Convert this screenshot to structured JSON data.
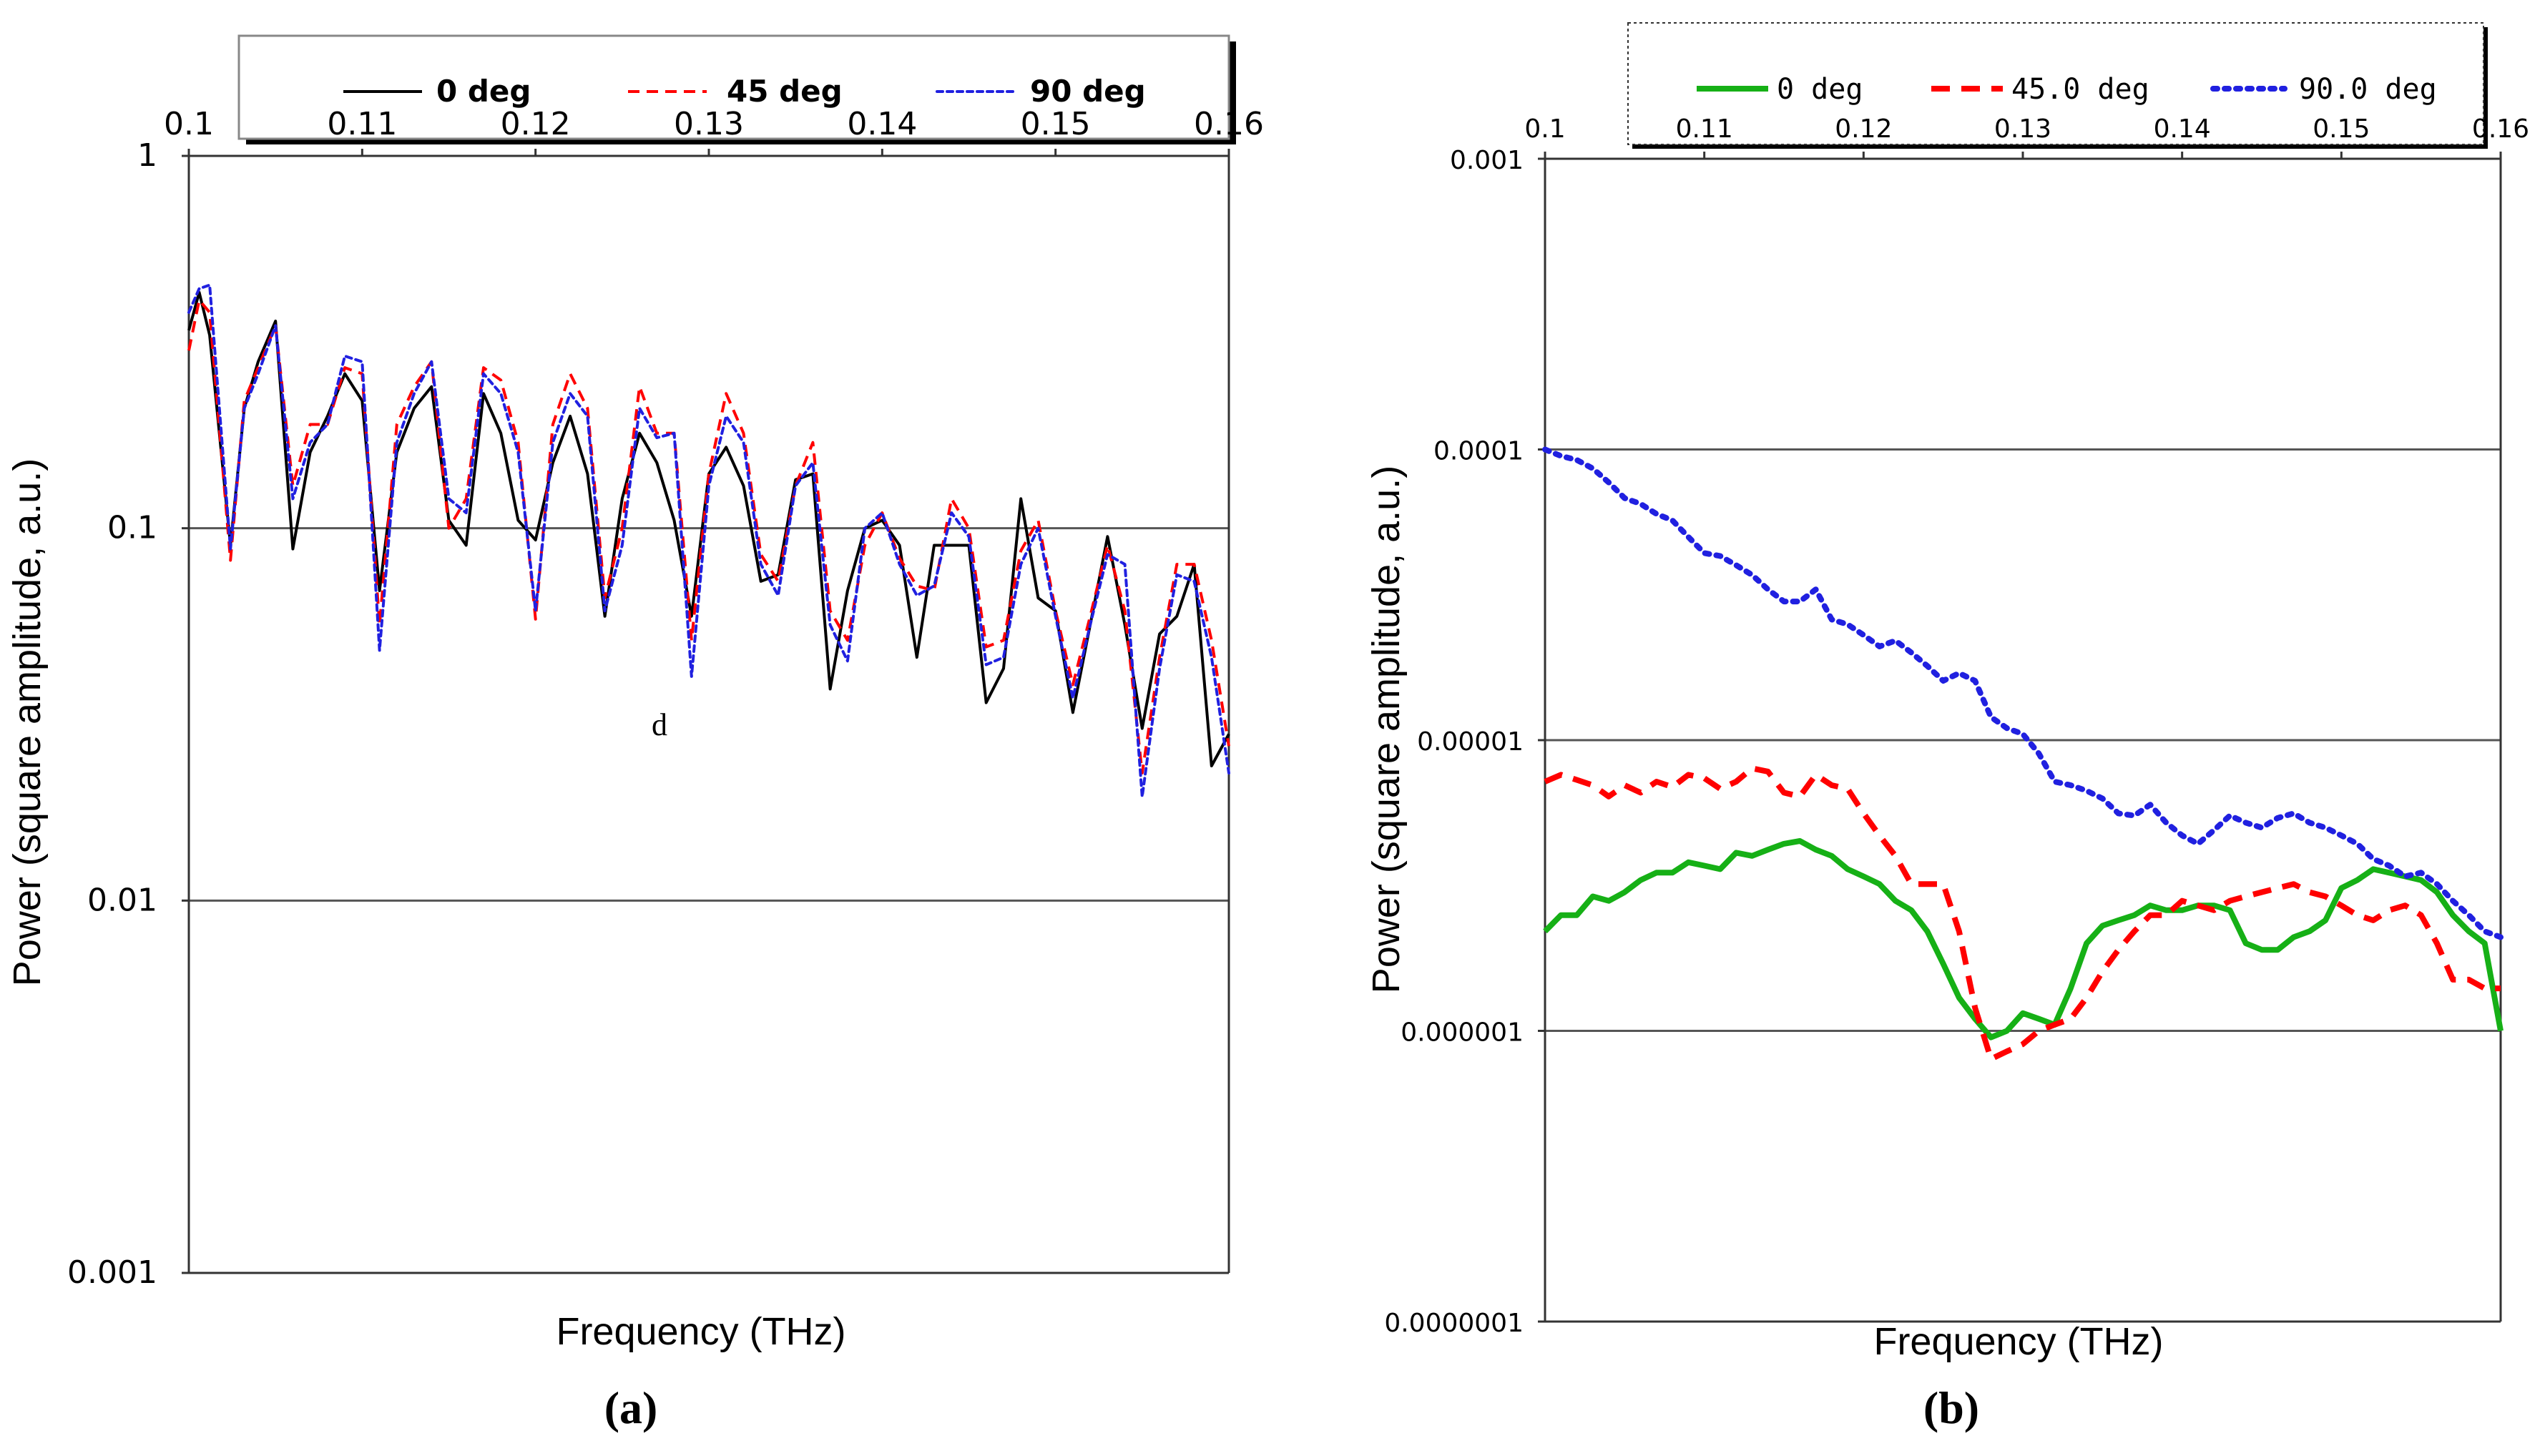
{
  "panels": [
    {
      "label": "(a)",
      "annotation": "d",
      "y_tick_labels": [
        "1",
        "0.1",
        "0.01",
        "0.001"
      ],
      "x_tick_labels": [
        "0.1",
        "0.11",
        "0.12",
        "0.13",
        "0.14",
        "0.15",
        "0.16"
      ]
    },
    {
      "label": "(b)",
      "annotation": "",
      "y_tick_labels": [
        "0.001",
        "0.0001",
        "0.00001",
        "0.000001",
        "0.0000001"
      ],
      "x_tick_labels": [
        "0.1",
        "0.11",
        "0.12",
        "0.13",
        "0.14",
        "0.15",
        "0.16"
      ]
    }
  ],
  "colors": {
    "black": "#000000",
    "red": "#ff0000",
    "blue": "#2020e0",
    "green": "#16b016",
    "grid": "#555555"
  },
  "chart_data": [
    {
      "type": "line",
      "title": "",
      "xlabel": "Frequency (THz)",
      "ylabel": "Power (square amplitude, a.u.)",
      "xlim": [
        0.1,
        0.16
      ],
      "ylim": [
        0.001,
        1
      ],
      "yscale": "log",
      "grid": "horizontal",
      "legend_position": "top",
      "x": [
        0.1,
        0.1006,
        0.1012,
        0.1024,
        0.1032,
        0.104,
        0.105,
        0.106,
        0.107,
        0.108,
        0.109,
        0.11,
        0.111,
        0.112,
        0.113,
        0.114,
        0.115,
        0.116,
        0.117,
        0.118,
        0.119,
        0.12,
        0.121,
        0.122,
        0.123,
        0.124,
        0.125,
        0.126,
        0.127,
        0.128,
        0.129,
        0.13,
        0.131,
        0.132,
        0.133,
        0.134,
        0.135,
        0.136,
        0.137,
        0.138,
        0.139,
        0.14,
        0.141,
        0.142,
        0.143,
        0.144,
        0.145,
        0.146,
        0.147,
        0.148,
        0.149,
        0.15,
        0.151,
        0.152,
        0.153,
        0.154,
        0.155,
        0.156,
        0.157,
        0.158,
        0.159,
        0.16
      ],
      "series": [
        {
          "name": "0 deg",
          "color": "#000000",
          "dash": "solid",
          "values": [
            0.34,
            0.43,
            0.33,
            0.09,
            0.21,
            0.28,
            0.36,
            0.088,
            0.16,
            0.2,
            0.26,
            0.22,
            0.068,
            0.16,
            0.21,
            0.24,
            0.105,
            0.09,
            0.23,
            0.18,
            0.105,
            0.093,
            0.15,
            0.2,
            0.14,
            0.058,
            0.12,
            0.18,
            0.15,
            0.105,
            0.058,
            0.14,
            0.165,
            0.13,
            0.072,
            0.075,
            0.135,
            0.14,
            0.037,
            0.068,
            0.1,
            0.105,
            0.09,
            0.045,
            0.09,
            0.09,
            0.09,
            0.034,
            0.042,
            0.12,
            0.065,
            0.06,
            0.032,
            0.055,
            0.095,
            0.055,
            0.029,
            0.052,
            0.058,
            0.08,
            0.023,
            0.028
          ]
        },
        {
          "name": "45 deg",
          "color": "#ff0000",
          "dash": "dashed",
          "values": [
            0.3,
            0.41,
            0.38,
            0.082,
            0.22,
            0.27,
            0.35,
            0.13,
            0.19,
            0.19,
            0.27,
            0.26,
            0.055,
            0.19,
            0.24,
            0.28,
            0.1,
            0.12,
            0.27,
            0.25,
            0.17,
            0.057,
            0.19,
            0.26,
            0.21,
            0.065,
            0.1,
            0.24,
            0.18,
            0.18,
            0.05,
            0.14,
            0.23,
            0.18,
            0.085,
            0.072,
            0.13,
            0.17,
            0.06,
            0.05,
            0.09,
            0.11,
            0.083,
            0.07,
            0.068,
            0.12,
            0.1,
            0.048,
            0.05,
            0.087,
            0.105,
            0.06,
            0.038,
            0.058,
            0.09,
            0.06,
            0.022,
            0.045,
            0.08,
            0.08,
            0.05,
            0.026
          ]
        },
        {
          "name": "90 deg",
          "color": "#2020e0",
          "dash": "dotted",
          "values": [
            0.38,
            0.44,
            0.45,
            0.088,
            0.21,
            0.26,
            0.35,
            0.12,
            0.17,
            0.19,
            0.29,
            0.28,
            0.047,
            0.17,
            0.23,
            0.28,
            0.12,
            0.11,
            0.26,
            0.23,
            0.16,
            0.06,
            0.17,
            0.23,
            0.2,
            0.06,
            0.09,
            0.21,
            0.175,
            0.18,
            0.04,
            0.13,
            0.2,
            0.17,
            0.08,
            0.066,
            0.13,
            0.15,
            0.055,
            0.044,
            0.1,
            0.11,
            0.08,
            0.066,
            0.07,
            0.11,
            0.095,
            0.043,
            0.045,
            0.08,
            0.1,
            0.058,
            0.035,
            0.055,
            0.085,
            0.08,
            0.019,
            0.042,
            0.075,
            0.072,
            0.045,
            0.022
          ]
        }
      ]
    },
    {
      "type": "line",
      "title": "",
      "xlabel": "Frequency (THz)",
      "ylabel": "Power (square amplitude, a.u.)",
      "xlim": [
        0.1,
        0.16
      ],
      "ylim": [
        1e-07,
        0.001
      ],
      "yscale": "log",
      "grid": "horizontal",
      "legend_position": "top",
      "x": [
        0.1,
        0.101,
        0.102,
        0.103,
        0.104,
        0.105,
        0.106,
        0.107,
        0.108,
        0.109,
        0.11,
        0.111,
        0.112,
        0.113,
        0.114,
        0.115,
        0.116,
        0.117,
        0.118,
        0.119,
        0.12,
        0.121,
        0.122,
        0.123,
        0.124,
        0.125,
        0.126,
        0.127,
        0.128,
        0.129,
        0.13,
        0.131,
        0.132,
        0.133,
        0.134,
        0.135,
        0.136,
        0.137,
        0.138,
        0.139,
        0.14,
        0.141,
        0.142,
        0.143,
        0.144,
        0.145,
        0.146,
        0.147,
        0.148,
        0.149,
        0.15,
        0.151,
        0.152,
        0.153,
        0.154,
        0.155,
        0.156,
        0.157,
        0.158,
        0.159,
        0.16
      ],
      "series": [
        {
          "name": "0 deg",
          "color": "#16b016",
          "dash": "solid",
          "values": [
            2.2e-06,
            2.5e-06,
            2.5e-06,
            2.9e-06,
            2.8e-06,
            3e-06,
            3.3e-06,
            3.5e-06,
            3.5e-06,
            3.8e-06,
            3.7e-06,
            3.6e-06,
            4.1e-06,
            4e-06,
            4.2e-06,
            4.4e-06,
            4.5e-06,
            4.2e-06,
            4e-06,
            3.6e-06,
            3.4e-06,
            3.2e-06,
            2.8e-06,
            2.6e-06,
            2.2e-06,
            1.7e-06,
            1.3e-06,
            1.1e-06,
            9.5e-07,
            1e-06,
            1.15e-06,
            1.1e-06,
            1.05e-06,
            1.4e-06,
            2e-06,
            2.3e-06,
            2.4e-06,
            2.5e-06,
            2.7e-06,
            2.6e-06,
            2.6e-06,
            2.7e-06,
            2.7e-06,
            2.6e-06,
            2e-06,
            1.9e-06,
            1.9e-06,
            2.1e-06,
            2.2e-06,
            2.4e-06,
            3.1e-06,
            3.3e-06,
            3.6e-06,
            3.5e-06,
            3.4e-06,
            3.3e-06,
            3e-06,
            2.5e-06,
            2.2e-06,
            2e-06,
            1e-06
          ]
        },
        {
          "name": "45.0 deg",
          "color": "#ff0000",
          "dash": "dashed",
          "values": [
            7.2e-06,
            7.6e-06,
            7.3e-06,
            7e-06,
            6.4e-06,
            7e-06,
            6.6e-06,
            7.2e-06,
            6.9e-06,
            7.6e-06,
            7.4e-06,
            6.8e-06,
            7.2e-06,
            8e-06,
            7.8e-06,
            6.6e-06,
            6.4e-06,
            7.6e-06,
            7e-06,
            6.8e-06,
            5.6e-06,
            4.7e-06,
            4e-06,
            3.2e-06,
            3.2e-06,
            3.2e-06,
            2.2e-06,
            1.2e-06,
            8e-07,
            8.5e-07,
            9e-07,
            1e-06,
            1.05e-06,
            1.1e-06,
            1.3e-06,
            1.6e-06,
            1.9e-06,
            2.2e-06,
            2.5e-06,
            2.5e-06,
            2.8e-06,
            2.7e-06,
            2.6e-06,
            2.8e-06,
            2.9e-06,
            3e-06,
            3.1e-06,
            3.2e-06,
            3e-06,
            2.9e-06,
            2.7e-06,
            2.5e-06,
            2.4e-06,
            2.6e-06,
            2.7e-06,
            2.5e-06,
            2e-06,
            1.5e-06,
            1.5e-06,
            1.4e-06,
            1.4e-06
          ]
        },
        {
          "name": "90.0 deg",
          "color": "#2020e0",
          "dash": "dotted",
          "values": [
            0.0001,
            9.5e-05,
            9.2e-05,
            8.6e-05,
            7.7e-05,
            6.8e-05,
            6.5e-05,
            6e-05,
            5.7e-05,
            5e-05,
            4.4e-05,
            4.3e-05,
            4e-05,
            3.7e-05,
            3.3e-05,
            3e-05,
            3e-05,
            3.3e-05,
            2.6e-05,
            2.5e-05,
            2.3e-05,
            2.1e-05,
            2.2e-05,
            2e-05,
            1.8e-05,
            1.6e-05,
            1.7e-05,
            1.6e-05,
            1.2e-05,
            1.1e-05,
            1.05e-05,
            9e-06,
            7.2e-06,
            7e-06,
            6.7e-06,
            6.3e-06,
            5.6e-06,
            5.5e-06,
            6e-06,
            5.2e-06,
            4.7e-06,
            4.4e-06,
            4.9e-06,
            5.5e-06,
            5.2e-06,
            5e-06,
            5.4e-06,
            5.6e-06,
            5.2e-06,
            5e-06,
            4.7e-06,
            4.4e-06,
            3.9e-06,
            3.7e-06,
            3.4e-06,
            3.5e-06,
            3.2e-06,
            2.8e-06,
            2.5e-06,
            2.2e-06,
            2.1e-06
          ]
        }
      ]
    }
  ]
}
